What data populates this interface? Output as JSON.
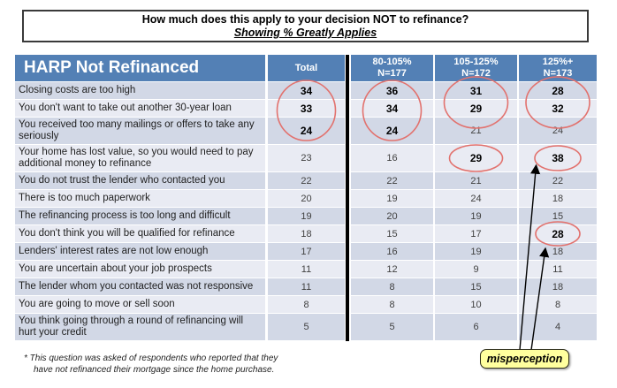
{
  "title": {
    "line1": "How much does this apply to your decision NOT to refinance?",
    "line2": "Showing % Greatly Applies"
  },
  "table": {
    "header": {
      "label": "HARP Not Refinanced",
      "columns": [
        {
          "line1": "Total",
          "line2": ""
        },
        {
          "line1": "80-105%",
          "line2": "N=177"
        },
        {
          "line1": "105-125%",
          "line2": "N=172"
        },
        {
          "line1": "125%+",
          "line2": "N=173"
        }
      ]
    },
    "rows": [
      {
        "label": "Closing costs are too high",
        "values": [
          34,
          36,
          31,
          28
        ],
        "bold": [
          true,
          true,
          true,
          true
        ]
      },
      {
        "label": "You don't want to take out another 30-year loan",
        "values": [
          33,
          34,
          29,
          32
        ],
        "bold": [
          true,
          true,
          true,
          true
        ]
      },
      {
        "label": "You received too many mailings or offers to take any seriously",
        "values": [
          24,
          24,
          21,
          24
        ],
        "bold": [
          true,
          true,
          false,
          false
        ],
        "tall": true
      },
      {
        "label": "Your home has lost value, so you would need to pay additional money to refinance",
        "values": [
          23,
          16,
          29,
          38
        ],
        "bold": [
          false,
          false,
          true,
          true
        ],
        "tall": true
      },
      {
        "label": "You do not trust the lender who contacted you",
        "values": [
          22,
          22,
          21,
          22
        ],
        "bold": [
          false,
          false,
          false,
          false
        ]
      },
      {
        "label": "There is too much paperwork",
        "values": [
          20,
          19,
          24,
          18
        ],
        "bold": [
          false,
          false,
          false,
          false
        ]
      },
      {
        "label": "The refinancing process is too long and difficult",
        "values": [
          19,
          20,
          19,
          15
        ],
        "bold": [
          false,
          false,
          false,
          false
        ]
      },
      {
        "label": "You don't think you will be qualified for refinance",
        "values": [
          18,
          15,
          17,
          28
        ],
        "bold": [
          false,
          false,
          false,
          true
        ]
      },
      {
        "label": "Lenders' interest rates are not low enough",
        "values": [
          17,
          16,
          19,
          18
        ],
        "bold": [
          false,
          false,
          false,
          false
        ]
      },
      {
        "label": "You are uncertain about your job prospects",
        "values": [
          11,
          12,
          9,
          11
        ],
        "bold": [
          false,
          false,
          false,
          false
        ]
      },
      {
        "label": "The lender whom you contacted was not responsive",
        "values": [
          11,
          8,
          15,
          18
        ],
        "bold": [
          false,
          false,
          false,
          false
        ]
      },
      {
        "label": "You are going to move or sell soon",
        "values": [
          8,
          8,
          10,
          8
        ],
        "bold": [
          false,
          false,
          false,
          false
        ]
      },
      {
        "label": "You think going through a round of refinancing will hurt your credit",
        "values": [
          5,
          5,
          6,
          4
        ],
        "bold": [
          false,
          false,
          false,
          false
        ],
        "tall": true
      }
    ]
  },
  "annotations": {
    "callout_label": "misperception",
    "circle_color": "#e2726e",
    "circled_groups": [
      {
        "column": "Total",
        "values": [
          34,
          33,
          24
        ]
      },
      {
        "column": "80-105%",
        "values": [
          36,
          34,
          24
        ]
      },
      {
        "column": "105-125%",
        "values": [
          31,
          29
        ]
      },
      {
        "column": "125%+",
        "values": [
          28,
          32
        ]
      },
      {
        "column": "105-125%",
        "values": [
          29
        ]
      },
      {
        "column": "125%+",
        "values": [
          38
        ]
      },
      {
        "column": "125%+",
        "values": [
          28
        ]
      }
    ],
    "arrows_point_to": [
      38,
      28
    ]
  },
  "footnote": {
    "line1": "* This question was asked of respondents who reported that they",
    "line2": "have not refinanced their mortgage since the home purchase."
  },
  "colors": {
    "header_bg": "#5380b5",
    "row_dark": "#d2d8e6",
    "row_light": "#e9ebf3",
    "circle": "#e2726e",
    "callout_bg": "#ffff9e"
  }
}
